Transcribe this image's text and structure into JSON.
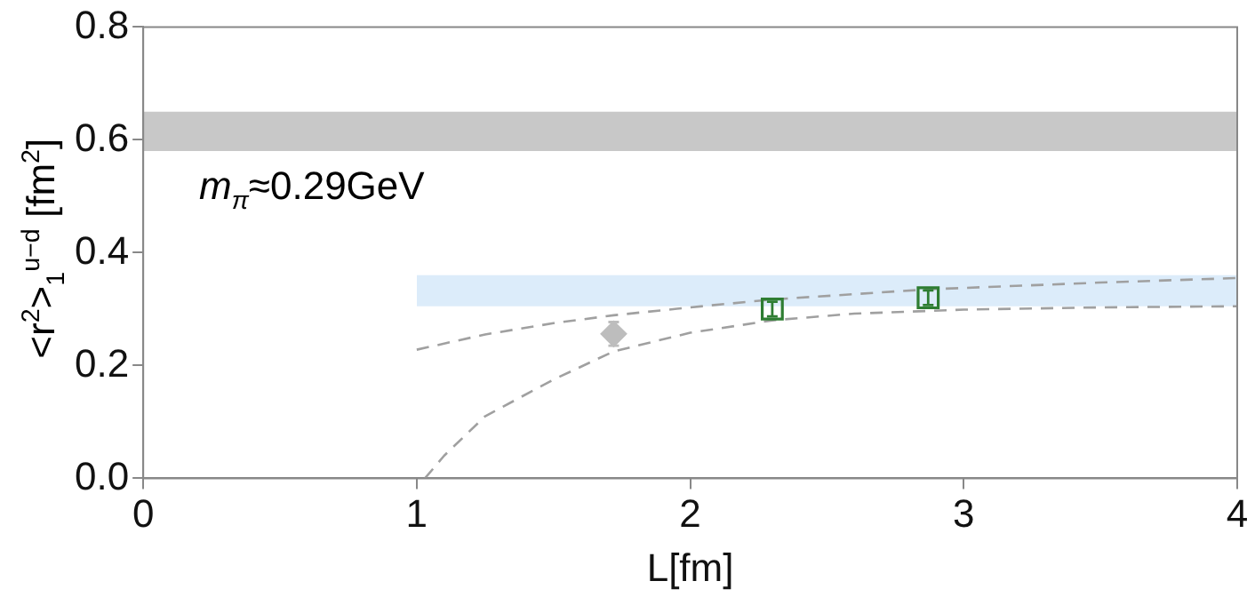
{
  "chart_data": {
    "type": "scatter",
    "xlabel": "L[fm]",
    "ylabel": "<r$^{2}$>$_{1}$$^{u−d}$ [fm$^{2}$]",
    "annotations": [
      "m$_{π}$≈0.29GeV"
    ],
    "xlim": [
      0,
      4
    ],
    "xticks": [
      0,
      1,
      2,
      3,
      4
    ],
    "ylim": [
      0,
      0.8
    ],
    "yticks": [
      {
        "value": 0,
        "label": "0.0"
      },
      0.2,
      0.4,
      0.6,
      0.8
    ],
    "grid": false,
    "legend": false,
    "bands": [
      {
        "axis": "y",
        "from": 0.58,
        "to": 0.65,
        "color": "#c8c8c8"
      }
    ],
    "series": [
      {
        "type": "area",
        "color": "#dcecfa",
        "x": [
          1,
          4
        ],
        "values": [
          null,
          null
        ],
        "lower": [
          0.305,
          0.305
        ],
        "upper": [
          0.36,
          0.36
        ]
      },
      {
        "type": "line",
        "color": "#a0a0a0",
        "line_style": "dashed",
        "marker": "none",
        "x": [
          1,
          1.25,
          1.5,
          1.72,
          2,
          2.3,
          2.87,
          3.5,
          4
        ],
        "values": [
          0.228,
          0.255,
          0.275,
          0.289,
          0.303,
          0.317,
          0.335,
          0.347,
          0.355
        ]
      },
      {
        "type": "line",
        "color": "#a0a0a0",
        "line_style": "dashed",
        "marker": "none",
        "x": [
          1.03,
          1.1,
          1.25,
          1.5,
          1.72,
          2,
          2.3,
          2.6,
          3,
          3.5,
          4
        ],
        "values": [
          0,
          0.04,
          0.11,
          0.175,
          0.225,
          0.258,
          0.28,
          0.292,
          0.299,
          0.303,
          0.305
        ]
      },
      {
        "color": "#bdbdbd",
        "marker": "diamond",
        "x": [
          1.72
        ],
        "values": [
          0.256
        ],
        "errors": [
          0.021
        ]
      },
      {
        "color": "#2e7d32",
        "marker": "square",
        "x": [
          2.3,
          2.87
        ],
        "values": [
          0.3,
          0.32
        ],
        "errors": [
          0.013,
          0.013
        ]
      }
    ]
  }
}
